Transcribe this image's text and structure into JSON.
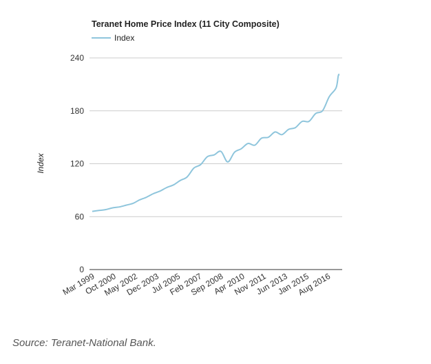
{
  "chart_data": {
    "type": "line",
    "title": "Teranet Home Price Index (11 City Composite)",
    "ylabel": "Index",
    "xlabel": "",
    "ylim": [
      0,
      240
    ],
    "yticks": [
      0,
      60,
      120,
      180,
      240
    ],
    "grid": "horizontal",
    "legend_position": "top-left",
    "xticks": [
      "Mar 1999",
      "Oct 2000",
      "May 2002",
      "Dec 2003",
      "Jul 2005",
      "Feb 2007",
      "Sep 2008",
      "Apr 2010",
      "Nov 2011",
      "Jun 2013",
      "Jan 2015",
      "Aug 2016"
    ],
    "line_color": "#8ec5dc",
    "series": [
      {
        "name": "Index",
        "points": [
          [
            "1999-03",
            66
          ],
          [
            "1999-09",
            67
          ],
          [
            "2000-03",
            68
          ],
          [
            "2000-09",
            70
          ],
          [
            "2001-03",
            71
          ],
          [
            "2001-09",
            73
          ],
          [
            "2002-03",
            75
          ],
          [
            "2002-09",
            79
          ],
          [
            "2003-03",
            82
          ],
          [
            "2003-09",
            86
          ],
          [
            "2004-03",
            89
          ],
          [
            "2004-09",
            93
          ],
          [
            "2005-03",
            96
          ],
          [
            "2005-09",
            101
          ],
          [
            "2006-03",
            105
          ],
          [
            "2006-09",
            115
          ],
          [
            "2007-03",
            119
          ],
          [
            "2007-09",
            128
          ],
          [
            "2008-03",
            130
          ],
          [
            "2008-09",
            134
          ],
          [
            "2009-03",
            122
          ],
          [
            "2009-09",
            133
          ],
          [
            "2010-03",
            137
          ],
          [
            "2010-09",
            143
          ],
          [
            "2011-03",
            141
          ],
          [
            "2011-09",
            149
          ],
          [
            "2012-03",
            150
          ],
          [
            "2012-09",
            156
          ],
          [
            "2013-03",
            153
          ],
          [
            "2013-09",
            159
          ],
          [
            "2014-03",
            161
          ],
          [
            "2014-09",
            168
          ],
          [
            "2015-03",
            168
          ],
          [
            "2015-09",
            177
          ],
          [
            "2016-03",
            180
          ],
          [
            "2016-09",
            196
          ],
          [
            "2017-03",
            206
          ],
          [
            "2017-05",
            220
          ],
          [
            "2017-06",
            221
          ]
        ]
      }
    ]
  },
  "footer": {
    "source": "Source: Teranet-National Bank."
  }
}
